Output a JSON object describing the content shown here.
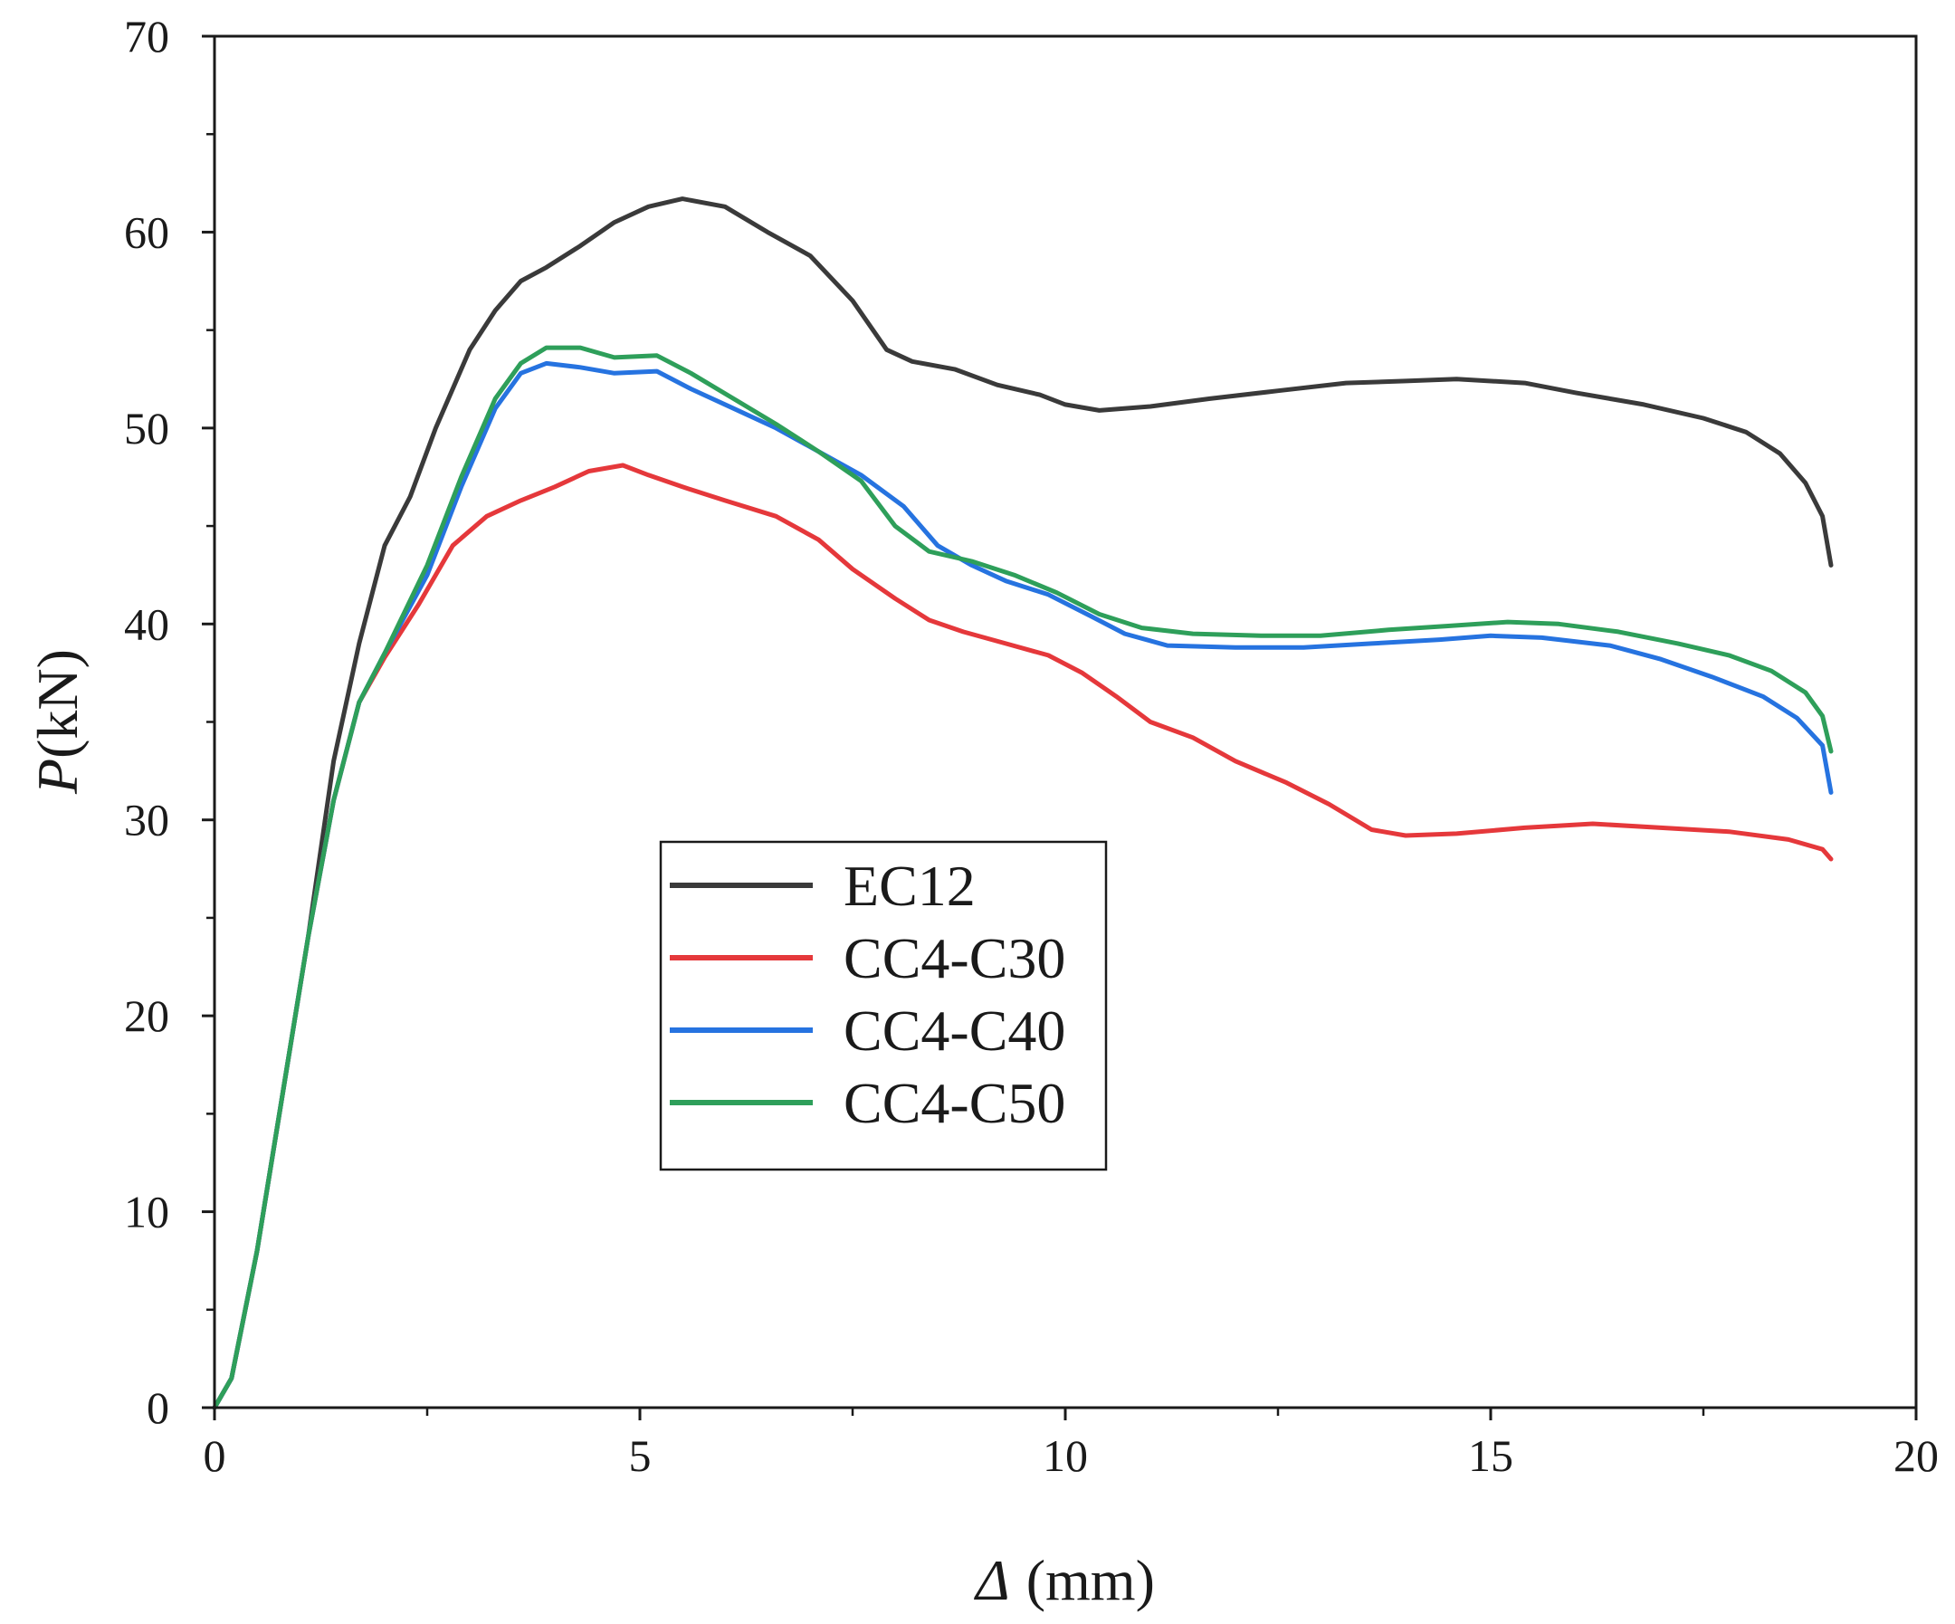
{
  "chart_data": {
    "type": "line",
    "title": "",
    "xlabel_symbol": "Δ",
    "xlabel_unit": "(mm)",
    "ylabel_symbol": "P",
    "ylabel_unit": "(kN)",
    "xlim": [
      0,
      20
    ],
    "ylim": [
      0,
      70
    ],
    "x_ticks": [
      0,
      5,
      10,
      15,
      20
    ],
    "y_ticks": [
      0,
      10,
      20,
      30,
      40,
      50,
      60,
      70
    ],
    "grid": false,
    "legend_position": "center-left",
    "series": [
      {
        "name": "EC12",
        "color": "#3a3a3a",
        "points": [
          [
            0,
            0
          ],
          [
            0.2,
            1.5
          ],
          [
            0.5,
            8
          ],
          [
            0.8,
            16
          ],
          [
            1.1,
            24
          ],
          [
            1.4,
            33
          ],
          [
            1.7,
            39
          ],
          [
            2.0,
            44
          ],
          [
            2.3,
            46.5
          ],
          [
            2.6,
            50
          ],
          [
            3.0,
            54
          ],
          [
            3.3,
            56
          ],
          [
            3.6,
            57.5
          ],
          [
            3.9,
            58.2
          ],
          [
            4.3,
            59.3
          ],
          [
            4.7,
            60.5
          ],
          [
            5.1,
            61.3
          ],
          [
            5.5,
            61.7
          ],
          [
            6.0,
            61.3
          ],
          [
            6.5,
            60
          ],
          [
            7.0,
            58.8
          ],
          [
            7.5,
            56.5
          ],
          [
            7.9,
            54
          ],
          [
            8.2,
            53.4
          ],
          [
            8.7,
            53
          ],
          [
            9.2,
            52.2
          ],
          [
            9.7,
            51.7
          ],
          [
            10.0,
            51.2
          ],
          [
            10.4,
            50.9
          ],
          [
            11.0,
            51.1
          ],
          [
            11.7,
            51.5
          ],
          [
            12.5,
            51.9
          ],
          [
            13.3,
            52.3
          ],
          [
            14.0,
            52.4
          ],
          [
            14.6,
            52.5
          ],
          [
            15.4,
            52.3
          ],
          [
            16.0,
            51.8
          ],
          [
            16.8,
            51.2
          ],
          [
            17.5,
            50.5
          ],
          [
            18.0,
            49.8
          ],
          [
            18.4,
            48.7
          ],
          [
            18.7,
            47.2
          ],
          [
            18.9,
            45.5
          ],
          [
            19.0,
            43
          ]
        ]
      },
      {
        "name": "CC4-C30",
        "color": "#e5383b",
        "points": [
          [
            0,
            0
          ],
          [
            0.2,
            1.5
          ],
          [
            0.5,
            8
          ],
          [
            0.8,
            16
          ],
          [
            1.1,
            24
          ],
          [
            1.4,
            31
          ],
          [
            1.7,
            36
          ],
          [
            2.0,
            38.3
          ],
          [
            2.4,
            41
          ],
          [
            2.8,
            44
          ],
          [
            3.2,
            45.5
          ],
          [
            3.6,
            46.3
          ],
          [
            4.0,
            47
          ],
          [
            4.4,
            47.8
          ],
          [
            4.8,
            48.1
          ],
          [
            5.1,
            47.6
          ],
          [
            5.5,
            47
          ],
          [
            6.0,
            46.3
          ],
          [
            6.6,
            45.5
          ],
          [
            7.1,
            44.3
          ],
          [
            7.5,
            42.8
          ],
          [
            8.0,
            41.3
          ],
          [
            8.4,
            40.2
          ],
          [
            8.8,
            39.6
          ],
          [
            9.3,
            39
          ],
          [
            9.8,
            38.4
          ],
          [
            10.2,
            37.5
          ],
          [
            10.6,
            36.3
          ],
          [
            11.0,
            35
          ],
          [
            11.5,
            34.2
          ],
          [
            12.0,
            33
          ],
          [
            12.6,
            31.9
          ],
          [
            13.1,
            30.8
          ],
          [
            13.6,
            29.5
          ],
          [
            14.0,
            29.2
          ],
          [
            14.6,
            29.3
          ],
          [
            15.4,
            29.6
          ],
          [
            16.2,
            29.8
          ],
          [
            17.0,
            29.6
          ],
          [
            17.8,
            29.4
          ],
          [
            18.5,
            29
          ],
          [
            18.9,
            28.5
          ],
          [
            19.0,
            28
          ]
        ]
      },
      {
        "name": "CC4-C40",
        "color": "#2673e0",
        "points": [
          [
            0,
            0
          ],
          [
            0.2,
            1.5
          ],
          [
            0.5,
            8
          ],
          [
            0.8,
            16
          ],
          [
            1.1,
            24
          ],
          [
            1.4,
            31
          ],
          [
            1.7,
            36
          ],
          [
            2.0,
            38.5
          ],
          [
            2.5,
            42.5
          ],
          [
            2.9,
            47
          ],
          [
            3.3,
            51
          ],
          [
            3.6,
            52.8
          ],
          [
            3.9,
            53.3
          ],
          [
            4.3,
            53.1
          ],
          [
            4.7,
            52.8
          ],
          [
            5.2,
            52.9
          ],
          [
            5.6,
            52
          ],
          [
            6.1,
            51
          ],
          [
            6.6,
            50
          ],
          [
            7.1,
            48.8
          ],
          [
            7.6,
            47.6
          ],
          [
            8.1,
            46
          ],
          [
            8.5,
            44
          ],
          [
            8.9,
            43
          ],
          [
            9.3,
            42.2
          ],
          [
            9.8,
            41.5
          ],
          [
            10.3,
            40.4
          ],
          [
            10.7,
            39.5
          ],
          [
            11.2,
            38.9
          ],
          [
            12.0,
            38.8
          ],
          [
            12.8,
            38.8
          ],
          [
            13.6,
            39
          ],
          [
            14.4,
            39.2
          ],
          [
            15.0,
            39.4
          ],
          [
            15.6,
            39.3
          ],
          [
            16.4,
            38.9
          ],
          [
            17.0,
            38.2
          ],
          [
            17.6,
            37.3
          ],
          [
            18.2,
            36.3
          ],
          [
            18.6,
            35.2
          ],
          [
            18.9,
            33.8
          ],
          [
            19.0,
            31.4
          ]
        ]
      },
      {
        "name": "CC4-C50",
        "color": "#2e9f5a",
        "points": [
          [
            0,
            0
          ],
          [
            0.2,
            1.5
          ],
          [
            0.5,
            8
          ],
          [
            0.8,
            16
          ],
          [
            1.1,
            24
          ],
          [
            1.4,
            31
          ],
          [
            1.7,
            36
          ],
          [
            2.0,
            38.5
          ],
          [
            2.5,
            43
          ],
          [
            2.9,
            47.5
          ],
          [
            3.3,
            51.5
          ],
          [
            3.6,
            53.3
          ],
          [
            3.9,
            54.1
          ],
          [
            4.3,
            54.1
          ],
          [
            4.7,
            53.6
          ],
          [
            5.2,
            53.7
          ],
          [
            5.6,
            52.8
          ],
          [
            6.1,
            51.5
          ],
          [
            6.6,
            50.2
          ],
          [
            7.1,
            48.8
          ],
          [
            7.6,
            47.3
          ],
          [
            8.0,
            45
          ],
          [
            8.4,
            43.7
          ],
          [
            8.9,
            43.2
          ],
          [
            9.4,
            42.5
          ],
          [
            9.9,
            41.6
          ],
          [
            10.4,
            40.5
          ],
          [
            10.9,
            39.8
          ],
          [
            11.5,
            39.5
          ],
          [
            12.3,
            39.4
          ],
          [
            13.0,
            39.4
          ],
          [
            13.8,
            39.7
          ],
          [
            14.5,
            39.9
          ],
          [
            15.2,
            40.1
          ],
          [
            15.8,
            40
          ],
          [
            16.5,
            39.6
          ],
          [
            17.2,
            39
          ],
          [
            17.8,
            38.4
          ],
          [
            18.3,
            37.6
          ],
          [
            18.7,
            36.5
          ],
          [
            18.9,
            35.3
          ],
          [
            19.0,
            33.5
          ]
        ]
      }
    ]
  }
}
